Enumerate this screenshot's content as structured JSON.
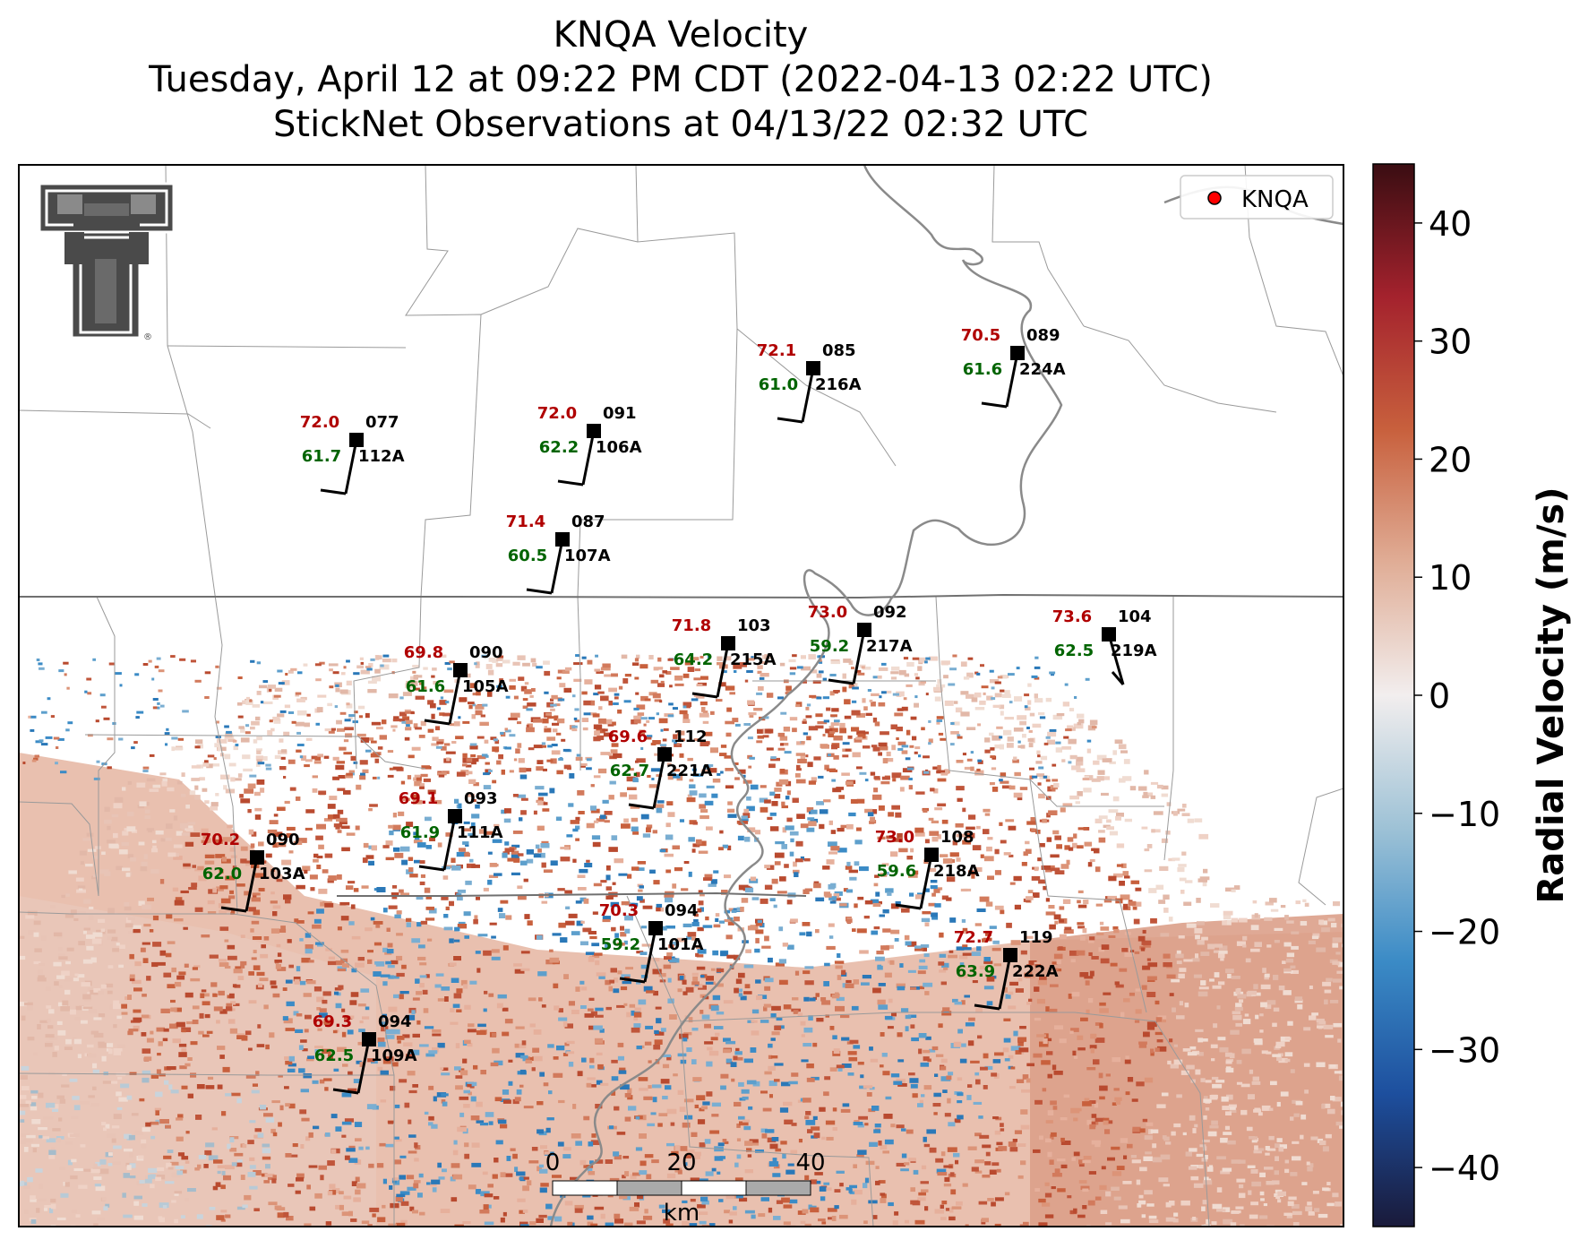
{
  "title": {
    "line1": "KNQA Velocity",
    "line2": "Tuesday, April 12 at 09:22 PM CDT (2022-04-13 02:22 UTC)",
    "line3": "StickNet Observations at 04/13/22 02:32 UTC"
  },
  "legend": {
    "label": "KNQA",
    "marker_color": "#ff0000"
  },
  "colorbar": {
    "label": "Radial Velocity (m/s)",
    "range": [
      -45,
      45
    ],
    "ticks": [
      40,
      30,
      20,
      10,
      0,
      -10,
      -20,
      -30,
      -40
    ],
    "tick_labels": [
      "40",
      "30",
      "20",
      "10",
      "0",
      "−10",
      "−20",
      "−30",
      "−40"
    ],
    "colors": [
      "#1a1a3a",
      "#1d4f9e",
      "#3b8bc6",
      "#9ec2d6",
      "#f2eeee",
      "#e0ad96",
      "#c8603d",
      "#a4222d",
      "#3a0d12"
    ]
  },
  "scale_bar": {
    "ticks": [
      "0",
      "20",
      "40"
    ],
    "unit": "km"
  },
  "logo": {
    "name": "Texas Tech double-T logo",
    "text": "®"
  },
  "colors": {
    "temperature": "#b00000",
    "dewpoint": "#006400",
    "station": "#000000"
  },
  "stations": [
    {
      "id": "077",
      "probe": "112A",
      "temp": "72.0",
      "dew": "61.7"
    },
    {
      "id": "091",
      "probe": "106A",
      "temp": "72.0",
      "dew": "62.2"
    },
    {
      "id": "085",
      "probe": "216A",
      "temp": "72.1",
      "dew": "61.0"
    },
    {
      "id": "089",
      "probe": "224A",
      "temp": "70.5",
      "dew": "61.6"
    },
    {
      "id": "087",
      "probe": "107A",
      "temp": "71.4",
      "dew": "60.5"
    },
    {
      "id": "092",
      "probe": "217A",
      "temp": "73.0",
      "dew": "59.2"
    },
    {
      "id": "103",
      "probe": "215A",
      "temp": "71.8",
      "dew": "64.2"
    },
    {
      "id": "104",
      "probe": "219A",
      "temp": "73.6",
      "dew": "62.5"
    },
    {
      "id": "090",
      "probe": "105A",
      "temp": "69.8",
      "dew": "61.6"
    },
    {
      "id": "112",
      "probe": "221A",
      "temp": "69.6",
      "dew": "62.7"
    },
    {
      "id": "093",
      "probe": "111A",
      "temp": "69.1",
      "dew": "61.9"
    },
    {
      "id": "090",
      "probe": "103A",
      "temp": "70.2",
      "dew": "62.0"
    },
    {
      "id": "108",
      "probe": "218A",
      "temp": "73.0",
      "dew": "59.6"
    },
    {
      "id": "094",
      "probe": "101A",
      "temp": "70.3",
      "dew": "59.2"
    },
    {
      "id": "119",
      "probe": "222A",
      "temp": "72.7",
      "dew": "63.9"
    },
    {
      "id": "094",
      "probe": "109A",
      "temp": "69.3",
      "dew": "62.5"
    }
  ]
}
